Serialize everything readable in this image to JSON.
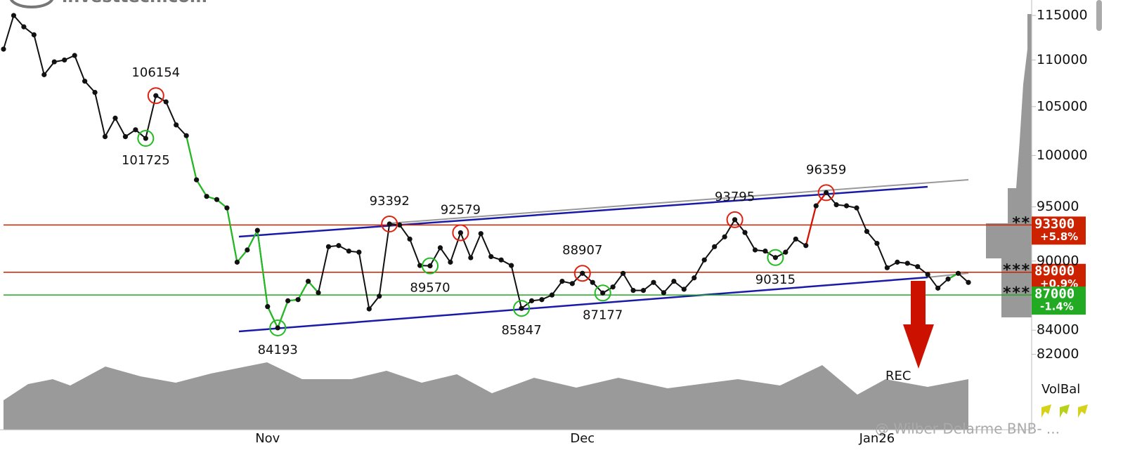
{
  "chart_data": {
    "type": "line",
    "logo": "investtech.com",
    "watermark": "@ Wilber Delarme BNB- ...",
    "indicator_label": "VolBal",
    "signal_label": "REC",
    "log_scale": true,
    "ylim": [
      81120,
      116790
    ],
    "yticks": [
      115000,
      110000,
      105000,
      100000,
      95000,
      90000,
      84000,
      82000
    ],
    "color": "#111111",
    "segment_colors": [
      {
        "from": 18,
        "to": 31,
        "color": "#22bb22"
      },
      {
        "from": 79,
        "to": 81,
        "color": "#dd1100"
      },
      {
        "from": 93,
        "to": 94,
        "color": "#22bb22"
      }
    ],
    "categories": [
      null,
      null,
      null,
      null,
      null,
      null,
      null,
      null,
      null,
      null,
      null,
      null,
      null,
      null,
      null,
      null,
      null,
      null,
      null,
      null,
      null,
      null,
      null,
      null,
      null,
      null,
      "Nov",
      null,
      null,
      null,
      null,
      null,
      null,
      null,
      null,
      null,
      null,
      null,
      null,
      null,
      null,
      null,
      null,
      null,
      null,
      null,
      null,
      null,
      null,
      null,
      null,
      null,
      null,
      null,
      null,
      null,
      null,
      "Dec",
      null,
      null,
      null,
      null,
      null,
      null,
      null,
      null,
      null,
      null,
      null,
      null,
      null,
      null,
      null,
      null,
      null,
      null,
      null,
      null,
      null,
      null,
      null,
      null,
      null,
      null,
      null,
      null,
      "Jan26",
      null,
      null,
      null,
      null,
      null,
      null,
      null,
      null,
      null
    ],
    "values": [
      111200,
      115000,
      113700,
      112800,
      108400,
      109800,
      110000,
      110500,
      107700,
      106500,
      101900,
      103800,
      101900,
      102600,
      101725,
      106154,
      105500,
      103100,
      102000,
      97600,
      96000,
      95700,
      94900,
      89900,
      91000,
      92800,
      86000,
      84193,
      86500,
      86600,
      88200,
      87200,
      91300,
      91400,
      90900,
      90800,
      85800,
      86900,
      93392,
      93300,
      92000,
      89600,
      89570,
      91200,
      89900,
      92579,
      90300,
      92500,
      90400,
      90100,
      89600,
      85847,
      86500,
      86600,
      87000,
      88200,
      88000,
      88907,
      88100,
      87177,
      87700,
      88900,
      87400,
      87400,
      88100,
      87200,
      88200,
      87500,
      88500,
      90100,
      91300,
      92200,
      93795,
      92600,
      91000,
      90900,
      90315,
      90800,
      92000,
      91400,
      95100,
      96359,
      95200,
      95100,
      94900,
      92700,
      91600,
      89400,
      89900,
      89800,
      89500,
      88800,
      87600,
      88400,
      88900,
      88100
    ],
    "annotations": [
      {
        "value": 106154,
        "kind": "top"
      },
      {
        "value": 101725,
        "kind": "bottom"
      },
      {
        "value": 93392,
        "kind": "top"
      },
      {
        "value": 84193,
        "kind": "bottom"
      },
      {
        "value": 92579,
        "kind": "top"
      },
      {
        "value": 89570,
        "kind": "bottom"
      },
      {
        "value": 85847,
        "kind": "bottom"
      },
      {
        "value": 88907,
        "kind": "top"
      },
      {
        "value": 87177,
        "kind": "bottom"
      },
      {
        "value": 93795,
        "kind": "top"
      },
      {
        "value": 90315,
        "kind": "bottom"
      },
      {
        "value": 96359,
        "kind": "top"
      }
    ],
    "levels": [
      {
        "value": 93300,
        "change": "+5.8%",
        "marker": "**",
        "color": "#cc2200"
      },
      {
        "value": 89000,
        "change": "+0.9%",
        "marker": "***",
        "color": "#cc2200"
      },
      {
        "value": 87000,
        "change": "-1.4%",
        "marker": "***",
        "color": "#22aa22"
      }
    ]
  }
}
